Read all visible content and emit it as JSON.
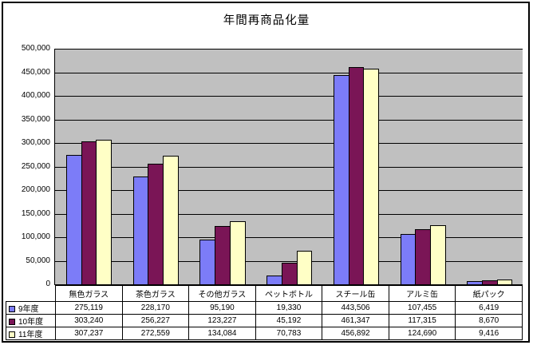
{
  "title": "年間再商品化量",
  "chart_data": {
    "type": "bar",
    "title": "年間再商品化量",
    "categories": [
      "無色ガラス",
      "茶色ガラス",
      "その他ガラス",
      "ペットボトル",
      "スチール缶",
      "アルミ缶",
      "紙パック"
    ],
    "series": [
      {
        "name": "9年度",
        "color": "#7c7cf8",
        "values": [
          275119,
          228170,
          95190,
          19330,
          443506,
          107455,
          6419
        ]
      },
      {
        "name": "10年度",
        "color": "#7a1556",
        "values": [
          303240,
          256227,
          123227,
          45192,
          461347,
          117315,
          8670
        ]
      },
      {
        "name": "11年度",
        "color": "#ffffc6",
        "values": [
          307237,
          272559,
          134084,
          70783,
          456892,
          124690,
          9416
        ]
      }
    ],
    "xlabel": "",
    "ylabel": "",
    "ylim": [
      0,
      500000
    ],
    "ytick_step": 50000,
    "grid": "horizontal-only",
    "plot_bg_color": "#c0c0c0",
    "legend_position": "data-table-left",
    "data_table_shown": true
  }
}
